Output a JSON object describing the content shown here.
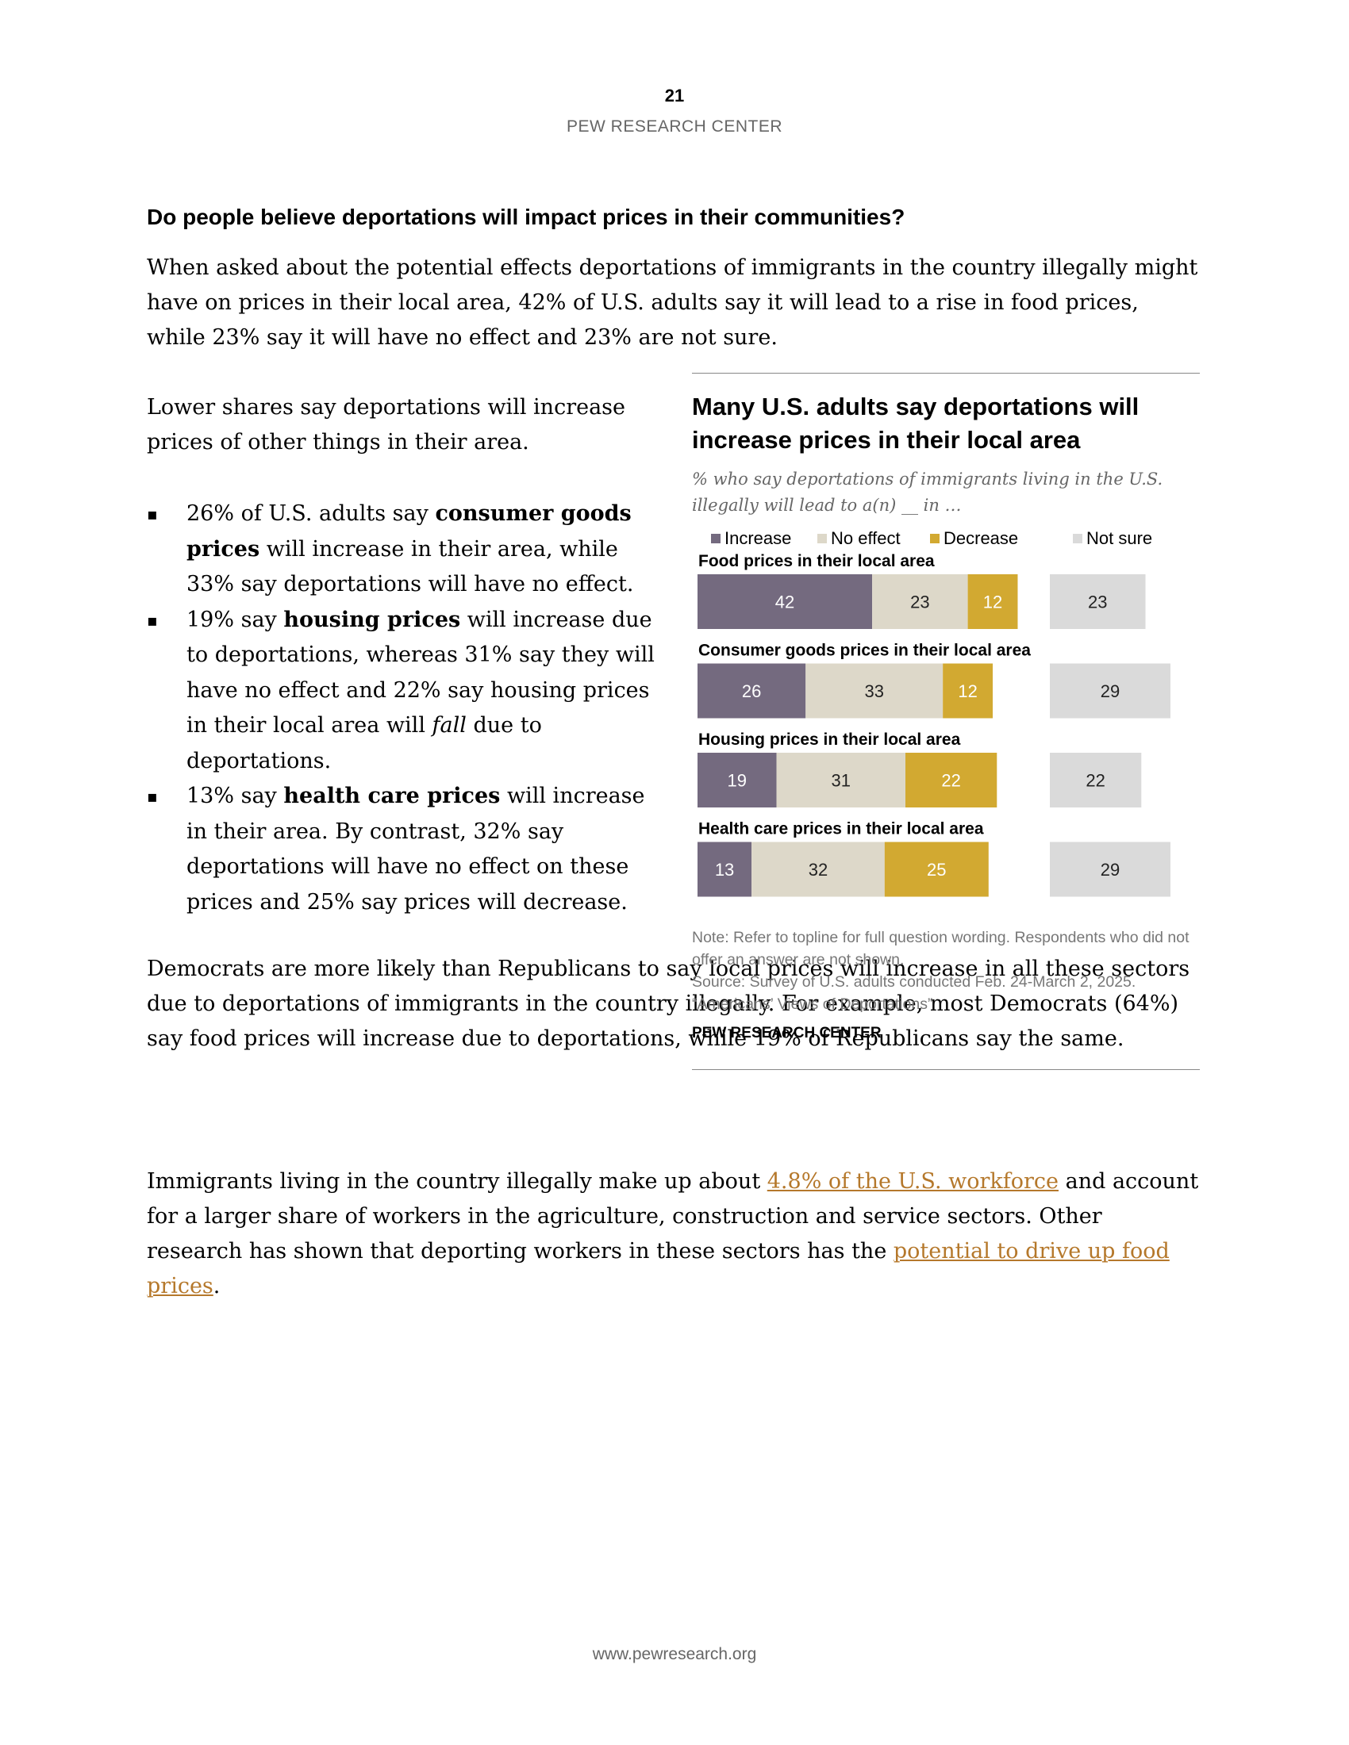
{
  "header": {
    "page_number": "21",
    "org_name": "PEW RESEARCH CENTER"
  },
  "section": {
    "heading": "Do people believe deportations will impact prices in their communities?",
    "intro": "When asked about the potential effects deportations of immigrants in the country illegally might have on prices in their local area, 42% of U.S. adults say it will lead to a rise in food prices, while 23% say it will have no effect and 23% are not sure.",
    "lower_shares": "Lower shares say deportations will increase prices of other things in their area.",
    "bullets": [
      {
        "marker": "▪",
        "pre": "26% of U.S. adults say ",
        "bold": "consumer goods prices",
        "post": " will increase in their area, while 33% say deportations will have no effect."
      },
      {
        "marker": "▪",
        "pre": "19% say ",
        "bold": "housing prices",
        "mid": " will increase due to deportations, whereas 31% say they will have no effect and 22% say housing prices in their local area will ",
        "italic": "fall",
        "post": " due to deportations."
      },
      {
        "marker": "▪",
        "pre": "13% say ",
        "bold": "health care prices",
        "post": " will increase in their area. By contrast, 32% say deportations will have no effect on these prices and 25% say prices will decrease."
      }
    ],
    "democrats": "Democrats are more likely than Republicans to say local prices will increase in all these sectors due to deportations of immigrants in the country illegally. For example, most Democrats (64%) say food prices will increase due to deportations, while 19% of Republicans say the same.",
    "immigrants": {
      "text_1": "Immigrants living in the country illegally make up about ",
      "link_1": "4.8% of the U.S. workforce",
      "text_2": " and account for a larger share of workers in the agriculture, construction and service sectors. Other research has shown that deporting workers in these sectors has the ",
      "link_2": "potential to drive up food prices",
      "text_3": "."
    }
  },
  "chart": {
    "title": "Many U.S. adults say deportations will increase prices in their local area",
    "subtitle": "% who say deportations of immigrants living in the U.S. illegally will lead to a(n) __ in …",
    "note": "Note: Refer to topline for full question wording. Respondents who did not offer an answer are not shown.",
    "source": "Source: Survey of U.S. adults conducted Feb. 24-March 2, 2025. “Americans’ Views of Deportations”",
    "credit": "PEW RESEARCH CENTER"
  },
  "chart_data": {
    "type": "bar",
    "stacked": true,
    "orientation": "horizontal",
    "title": "Many U.S. adults say deportations will increase prices in their local area",
    "subtitle": "% who say deportations of immigrants living in the U.S. illegally will lead to a(n) __ in …",
    "categories": [
      "Food prices in their local area",
      "Consumer goods prices in their local area",
      "Housing prices in their local area",
      "Health care prices in their local area"
    ],
    "series": [
      {
        "name": "Increase",
        "color": "#746a7f",
        "label_color": "#ffffff",
        "values": [
          42,
          26,
          19,
          13
        ]
      },
      {
        "name": "No effect",
        "color": "#ddd8c9",
        "label_color": "#222222",
        "values": [
          23,
          33,
          31,
          32
        ]
      },
      {
        "name": "Decrease",
        "color": "#d2a931",
        "label_color": "#ffffff",
        "values": [
          12,
          12,
          22,
          25
        ]
      },
      {
        "name": "Not sure",
        "color": "#dadada",
        "label_color": "#222222",
        "values": [
          23,
          29,
          22,
          29
        ],
        "separate": true
      }
    ],
    "legend": "top",
    "grid": false,
    "xlim": [
      0,
      100
    ]
  },
  "footer": {
    "url": "www.pewresearch.org"
  }
}
